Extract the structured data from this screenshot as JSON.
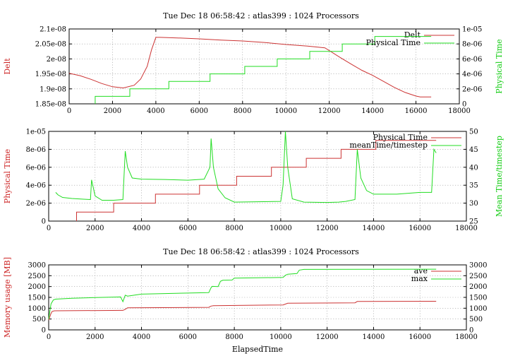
{
  "colors": {
    "red": "#cc3333",
    "green": "#22dd22",
    "redText": "#cc2222",
    "greenText": "#11cc11"
  },
  "titles": {
    "top": "Tue Dec 18 06:58:42 : atlas399 : 1024 Processors",
    "bottom": "Tue Dec 18 06:58:42 : atlas399 : 1024 Processors"
  },
  "chart_data": [
    {
      "type": "line",
      "title": "Tue Dec 18 06:58:42 : atlas399 : 1024 Processors",
      "xlim": [
        0,
        18000
      ],
      "xticks": [
        "0",
        "2000",
        "4000",
        "6000",
        "8000",
        "10000",
        "12000",
        "14000",
        "16000",
        "18000"
      ],
      "ylabel": "Delt",
      "ylim": [
        1.85e-08,
        2.1e-08
      ],
      "yticks": [
        "1.85e-08",
        "1.9e-08",
        "1.95e-08",
        "2e-08",
        "2.05e-08",
        "2.1e-08"
      ],
      "y2label": "Physical Time",
      "y2lim": [
        0,
        1e-05
      ],
      "y2ticks": [
        "0",
        "2e-06",
        "4e-06",
        "6e-06",
        "8e-06",
        "1e-05"
      ],
      "grid": true,
      "legend": "top-right",
      "series": [
        {
          "name": "Delt",
          "axis": "y",
          "x": [
            0,
            500,
            1000,
            1500,
            2000,
            2500,
            3000,
            3300,
            3600,
            3800,
            4000,
            4200,
            5000,
            6000,
            7000,
            8000,
            9000,
            10000,
            11000,
            11800,
            12500,
            13000,
            13500,
            14000,
            14500,
            15000,
            15500,
            16000,
            16200,
            16700
          ],
          "y": [
            1.952e-08,
            1.944e-08,
            1.932e-08,
            1.918e-08,
            1.907e-08,
            1.903e-08,
            1.912e-08,
            1.933e-08,
            1.975e-08,
            2.03e-08,
            2.072e-08,
            2.072e-08,
            2.07e-08,
            2.067e-08,
            2.063e-08,
            2.06e-08,
            2.055e-08,
            2.048e-08,
            2.043e-08,
            2.037e-08,
            2.005e-08,
            1.983e-08,
            1.962e-08,
            1.945e-08,
            1.925e-08,
            1.905e-08,
            1.888e-08,
            1.876e-08,
            1.873e-08,
            1.873e-08
          ]
        },
        {
          "name": "Physical Time",
          "axis": "y2",
          "x": [
            1200,
            1200,
            2800,
            2800,
            4600,
            4600,
            6500,
            6500,
            8100,
            8100,
            9600,
            9600,
            11100,
            11100,
            12600,
            12600,
            14100,
            14100,
            16700
          ],
          "y": [
            0,
            1e-06,
            1e-06,
            2e-06,
            2e-06,
            3e-06,
            3e-06,
            4e-06,
            4e-06,
            5e-06,
            5e-06,
            6e-06,
            6e-06,
            7e-06,
            7e-06,
            8e-06,
            8e-06,
            9e-06,
            9e-06
          ]
        }
      ]
    },
    {
      "type": "line",
      "title": "",
      "xlim": [
        0,
        18000
      ],
      "xticks": [
        "0",
        "2000",
        "4000",
        "6000",
        "8000",
        "10000",
        "12000",
        "14000",
        "16000",
        "18000"
      ],
      "ylabel": "Physical Time",
      "ylim": [
        0,
        1e-05
      ],
      "yticks": [
        "0",
        "2e-06",
        "4e-06",
        "6e-06",
        "8e-06",
        "1e-05"
      ],
      "y2label": "Mean Time/timestep",
      "y2lim": [
        25,
        50
      ],
      "y2ticks": [
        "25",
        "30",
        "35",
        "40",
        "45",
        "50"
      ],
      "grid": true,
      "legend": "top-right",
      "series": [
        {
          "name": "Physical Time",
          "axis": "y",
          "x": [
            1200,
            1200,
            2800,
            2800,
            4600,
            4600,
            6500,
            6500,
            8100,
            8100,
            9600,
            9600,
            11100,
            11100,
            12600,
            12600,
            14100,
            14100,
            16700
          ],
          "y": [
            0,
            1e-06,
            1e-06,
            2e-06,
            2e-06,
            3e-06,
            3e-06,
            4e-06,
            4e-06,
            5e-06,
            5e-06,
            6e-06,
            6e-06,
            7e-06,
            7e-06,
            8e-06,
            8e-06,
            9e-06,
            9e-06
          ]
        },
        {
          "name": "meanTime/timestep",
          "axis": "y2",
          "x": [
            300,
            400,
            600,
            1000,
            1500,
            1800,
            1850,
            2000,
            2300,
            2800,
            3200,
            3300,
            3400,
            3600,
            4000,
            5000,
            6000,
            6700,
            6950,
            7000,
            7100,
            7300,
            7600,
            8000,
            9000,
            10000,
            10100,
            10200,
            10300,
            10500,
            11000,
            12000,
            12500,
            12800,
            13200,
            13300,
            13450,
            13700,
            14000,
            15000,
            16000,
            16500,
            16600,
            16700
          ],
          "y": [
            33,
            32.3,
            31.6,
            31.3,
            31.1,
            31,
            36.5,
            32,
            30.8,
            30.8,
            31,
            44.5,
            40,
            37,
            36.7,
            36.6,
            36.4,
            36.7,
            40,
            48,
            40,
            34,
            31.5,
            30.3,
            30.4,
            30.5,
            35,
            50,
            40,
            31.2,
            30.3,
            30.2,
            30.3,
            30.5,
            31,
            45,
            37,
            33.5,
            32.5,
            32.5,
            33,
            33,
            45,
            44
          ]
        }
      ]
    },
    {
      "type": "line",
      "title": "Tue Dec 18 06:58:42 : atlas399 : 1024 Processors",
      "xlabel": "ElapsedTime",
      "xlim": [
        0,
        18000
      ],
      "xticks": [
        "0",
        "2000",
        "4000",
        "6000",
        "8000",
        "10000",
        "12000",
        "14000",
        "16000",
        "18000"
      ],
      "ylabel": "Memory usage [MB]",
      "ylim": [
        0,
        3000
      ],
      "yticks": [
        "0",
        "500",
        "1000",
        "1500",
        "2000",
        "2500",
        "3000"
      ],
      "y2label": "",
      "y2lim": [
        0,
        3000
      ],
      "y2ticks": [
        "0",
        "500",
        "1000",
        "1500",
        "2000",
        "2500",
        "3000"
      ],
      "grid": true,
      "legend": "top-right",
      "series": [
        {
          "name": "ave",
          "axis": "y",
          "x": [
            0,
            100,
            150,
            250,
            3200,
            3300,
            3400,
            6900,
            7000,
            7100,
            10100,
            10300,
            13200,
            13300,
            16700
          ],
          "y": [
            450,
            760,
            850,
            880,
            900,
            950,
            1020,
            1040,
            1100,
            1120,
            1150,
            1230,
            1250,
            1310,
            1320
          ]
        },
        {
          "name": "max",
          "axis": "y",
          "x": [
            0,
            100,
            200,
            300,
            1000,
            2000,
            3100,
            3200,
            3300,
            3400,
            4000,
            6000,
            6900,
            7000,
            7050,
            7300,
            7400,
            7500,
            7900,
            8000,
            10100,
            10200,
            10300,
            10700,
            10800,
            11000,
            16700
          ],
          "y": [
            500,
            1200,
            1380,
            1420,
            1460,
            1490,
            1520,
            1300,
            1600,
            1560,
            1650,
            1700,
            1720,
            1950,
            2010,
            2000,
            2240,
            2290,
            2300,
            2390,
            2420,
            2520,
            2570,
            2600,
            2760,
            2790,
            2800
          ]
        }
      ]
    }
  ]
}
